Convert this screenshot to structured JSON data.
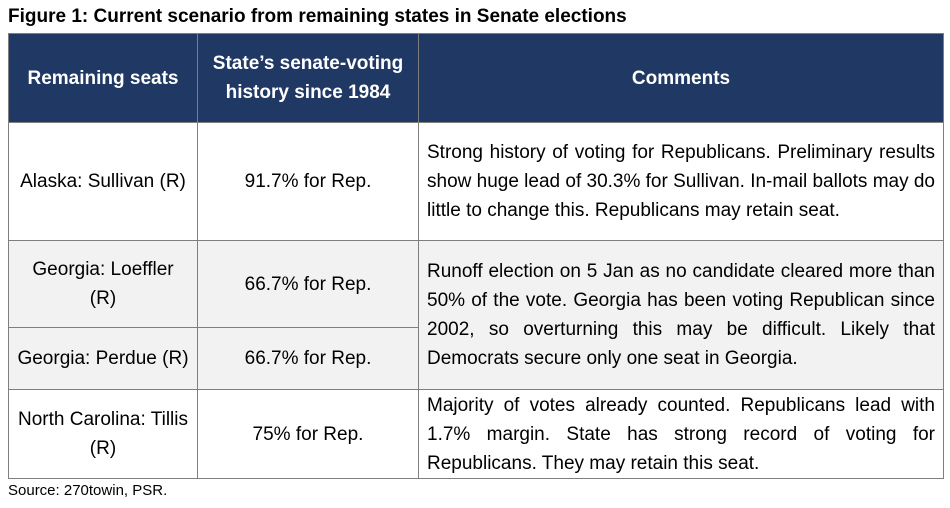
{
  "figure": {
    "title": "Figure 1: Current scenario from remaining states in Senate elections",
    "source": "Source: 270towin, PSR."
  },
  "table": {
    "headers": {
      "seats": "Remaining seats",
      "history": "State’s senate-voting history since 1984",
      "comments": "Comments"
    },
    "rows": [
      {
        "seat": "Alaska: Sullivan (R)",
        "history": "91.7% for Rep.",
        "comment": "Strong history of voting for Republicans. Preliminary results show huge lead of 30.3% for Sullivan. In-mail ballots may do little to change this. Republicans may retain seat."
      },
      {
        "seat": "Georgia: Loeffler (R)",
        "history": "66.7% for Rep.",
        "comment": "Runoff election on 5 Jan as no candidate cleared more than 50% of the vote. Georgia has been voting Republican since 2002, so overturning this may be difficult. Likely that Democrats secure only one seat in Georgia."
      },
      {
        "seat": "Georgia: Perdue (R)",
        "history": "66.7% for Rep."
      },
      {
        "seat": "North Carolina: Tillis (R)",
        "history": "75% for Rep.",
        "comment": "Majority of votes already counted. Republicans lead with 1.7% margin. State has strong record of voting for Republicans. They may retain this seat."
      }
    ]
  }
}
